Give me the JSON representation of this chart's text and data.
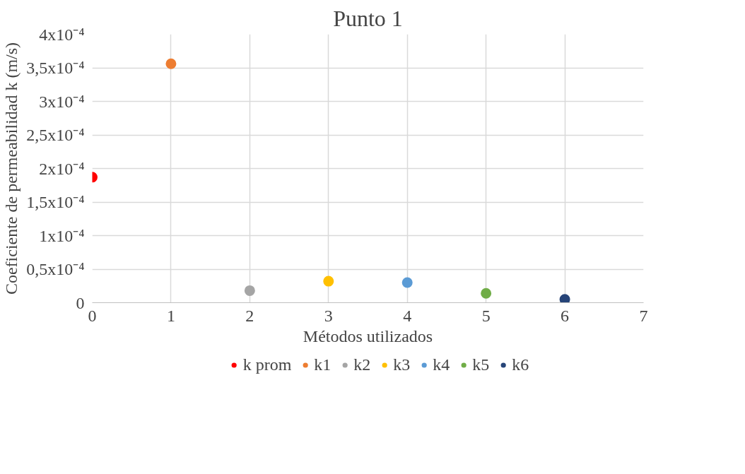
{
  "chart_data": {
    "type": "scatter",
    "title": "Punto 1",
    "xlabel": "Métodos utilizados",
    "ylabel": "Coeficiente de permeabilidad k (m/s)",
    "series": [
      {
        "name": "k prom",
        "color": "#ff0000",
        "x": [
          0
        ],
        "values": [
          0.000187
        ]
      },
      {
        "name": "k1",
        "color": "#ed7d31",
        "x": [
          1
        ],
        "values": [
          0.000356
        ]
      },
      {
        "name": "k2",
        "color": "#a5a5a5",
        "x": [
          2
        ],
        "values": [
          1.8e-05
        ]
      },
      {
        "name": "k3",
        "color": "#ffc000",
        "x": [
          3
        ],
        "values": [
          3.2e-05
        ]
      },
      {
        "name": "k4",
        "color": "#5b9bd5",
        "x": [
          4
        ],
        "values": [
          3e-05
        ]
      },
      {
        "name": "k5",
        "color": "#70ad47",
        "x": [
          5
        ],
        "values": [
          1.4e-05
        ]
      },
      {
        "name": "k6",
        "color": "#264478",
        "x": [
          6
        ],
        "values": [
          5e-06
        ]
      }
    ],
    "xlim": [
      0,
      7
    ],
    "xticks": [
      0,
      1,
      2,
      3,
      4,
      5,
      6,
      7
    ],
    "ylim": [
      0,
      0.0004
    ],
    "yticks": [
      {
        "value": 0,
        "label": "0"
      },
      {
        "value": 5e-05,
        "label": "0,5x10⁻⁴"
      },
      {
        "value": 0.0001,
        "label": "1x10⁻⁴"
      },
      {
        "value": 0.00015,
        "label": "1,5x10⁻⁴"
      },
      {
        "value": 0.0002,
        "label": "2x10⁻⁴"
      },
      {
        "value": 0.00025,
        "label": "2,5x10⁻⁴"
      },
      {
        "value": 0.0003,
        "label": "3x10⁻⁴"
      },
      {
        "value": 0.00035,
        "label": "3,5x10⁻⁴"
      },
      {
        "value": 0.0004,
        "label": "4x10⁻⁴"
      }
    ],
    "grid": true,
    "legend": "bottom",
    "marker": "circle"
  }
}
